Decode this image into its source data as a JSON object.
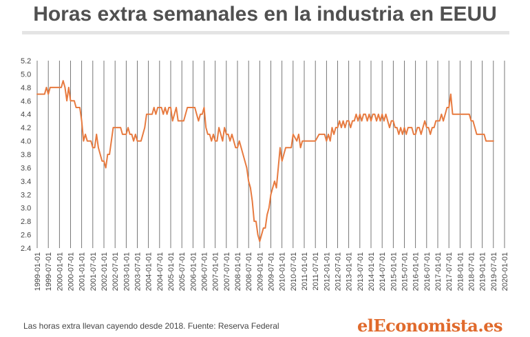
{
  "title": "Horas extra semanales en la industria en EEUU",
  "caption": "Las horas extra llevan cayendo desde 2018. Fuente: Reserva Federal",
  "brand": "elEconomista.es",
  "colors": {
    "line": "#e77a3f",
    "grid": "#555555",
    "title": "#505050",
    "brand": "#e06a2c"
  },
  "chart_data": {
    "type": "line",
    "title": "Horas extra semanales en la industria en EEUU",
    "xlabel": "",
    "ylabel": "",
    "ylim": [
      2.4,
      5.2
    ],
    "y_ticks": [
      "2.4",
      "2.6",
      "2.8",
      "3.0",
      "3.2",
      "3.4",
      "3.6",
      "3.8",
      "4.0",
      "4.2",
      "4.4",
      "4.6",
      "4.8",
      "5.0",
      "5.2"
    ],
    "x_ticks": [
      "1999-01-01",
      "1999-07-01",
      "2000-01-01",
      "2000-07-01",
      "2001-01-01",
      "2001-07-01",
      "2002-01-01",
      "2002-07-01",
      "2003-01-01",
      "2003-07-01",
      "2004-01-01",
      "2004-07-01",
      "2005-01-01",
      "2005-07-01",
      "2006-01-01",
      "2006-07-01",
      "2007-01-01",
      "2007-07-01",
      "2008-01-01",
      "2008-07-01",
      "2009-01-01",
      "2009-07-01",
      "2010-01-01",
      "2010-07-01",
      "2011-01-01",
      "2011-07-01",
      "2012-01-01",
      "2012-07-01",
      "2013-01-01",
      "2013-07-01",
      "2014-01-01",
      "2014-07-01",
      "2015-01-01",
      "2015-07-01",
      "2016-01-01",
      "2016-07-01",
      "2017-01-01",
      "2017-07-01",
      "2018-01-01",
      "2018-07-01",
      "2019-01-01",
      "2019-07-01",
      "2020-01-01"
    ],
    "grid": "vertical",
    "legend": "none",
    "series": [
      {
        "values": [
          [
            "1999-01-01",
            4.7
          ],
          [
            "1999-03-01",
            4.7
          ],
          [
            "1999-05-01",
            4.7
          ],
          [
            "1999-06-01",
            4.8
          ],
          [
            "1999-07-01",
            4.7
          ],
          [
            "1999-08-01",
            4.8
          ],
          [
            "1999-10-01",
            4.8
          ],
          [
            "1999-12-01",
            4.8
          ],
          [
            "2000-02-01",
            4.8
          ],
          [
            "2000-03-01",
            4.9
          ],
          [
            "2000-04-01",
            4.8
          ],
          [
            "2000-05-01",
            4.6
          ],
          [
            "2000-06-01",
            4.8
          ],
          [
            "2000-07-01",
            4.6
          ],
          [
            "2000-09-01",
            4.6
          ],
          [
            "2000-10-01",
            4.5
          ],
          [
            "2000-12-01",
            4.5
          ],
          [
            "2001-01-01",
            4.3
          ],
          [
            "2001-02-01",
            4.0
          ],
          [
            "2001-03-01",
            4.1
          ],
          [
            "2001-04-01",
            4.0
          ],
          [
            "2001-06-01",
            4.0
          ],
          [
            "2001-07-01",
            3.9
          ],
          [
            "2001-08-01",
            3.9
          ],
          [
            "2001-09-01",
            4.1
          ],
          [
            "2001-10-01",
            3.9
          ],
          [
            "2001-11-01",
            3.8
          ],
          [
            "2001-12-01",
            3.7
          ],
          [
            "2002-01-01",
            3.7
          ],
          [
            "2002-02-01",
            3.6
          ],
          [
            "2002-03-01",
            3.8
          ],
          [
            "2002-04-01",
            3.8
          ],
          [
            "2002-05-01",
            4.0
          ],
          [
            "2002-06-01",
            4.2
          ],
          [
            "2002-08-01",
            4.2
          ],
          [
            "2002-10-01",
            4.2
          ],
          [
            "2002-11-01",
            4.1
          ],
          [
            "2003-01-01",
            4.1
          ],
          [
            "2003-02-01",
            4.2
          ],
          [
            "2003-03-01",
            4.1
          ],
          [
            "2003-04-01",
            4.1
          ],
          [
            "2003-05-01",
            4.0
          ],
          [
            "2003-06-01",
            4.1
          ],
          [
            "2003-07-01",
            4.0
          ],
          [
            "2003-09-01",
            4.0
          ],
          [
            "2003-10-01",
            4.1
          ],
          [
            "2003-11-01",
            4.2
          ],
          [
            "2003-12-01",
            4.4
          ],
          [
            "2004-02-01",
            4.4
          ],
          [
            "2004-03-01",
            4.4
          ],
          [
            "2004-04-01",
            4.5
          ],
          [
            "2004-05-01",
            4.4
          ],
          [
            "2004-06-01",
            4.5
          ],
          [
            "2004-08-01",
            4.5
          ],
          [
            "2004-09-01",
            4.4
          ],
          [
            "2004-10-01",
            4.5
          ],
          [
            "2004-11-01",
            4.4
          ],
          [
            "2004-12-01",
            4.5
          ],
          [
            "2005-01-01",
            4.5
          ],
          [
            "2005-02-01",
            4.3
          ],
          [
            "2005-03-01",
            4.4
          ],
          [
            "2005-04-01",
            4.5
          ],
          [
            "2005-05-01",
            4.3
          ],
          [
            "2005-07-01",
            4.3
          ],
          [
            "2005-08-01",
            4.3
          ],
          [
            "2005-09-01",
            4.4
          ],
          [
            "2005-10-01",
            4.5
          ],
          [
            "2005-12-01",
            4.5
          ],
          [
            "2006-02-01",
            4.5
          ],
          [
            "2006-03-01",
            4.4
          ],
          [
            "2006-04-01",
            4.3
          ],
          [
            "2006-05-01",
            4.4
          ],
          [
            "2006-06-01",
            4.4
          ],
          [
            "2006-07-01",
            4.5
          ],
          [
            "2006-08-01",
            4.2
          ],
          [
            "2006-09-01",
            4.1
          ],
          [
            "2006-10-01",
            4.1
          ],
          [
            "2006-11-01",
            4.0
          ],
          [
            "2006-12-01",
            4.1
          ],
          [
            "2007-01-01",
            4.0
          ],
          [
            "2007-02-01",
            4.0
          ],
          [
            "2007-03-01",
            4.2
          ],
          [
            "2007-04-01",
            4.1
          ],
          [
            "2007-05-01",
            4.0
          ],
          [
            "2007-06-01",
            4.2
          ],
          [
            "2007-07-01",
            4.1
          ],
          [
            "2007-08-01",
            4.1
          ],
          [
            "2007-09-01",
            4.0
          ],
          [
            "2007-10-01",
            4.1
          ],
          [
            "2007-11-01",
            4.0
          ],
          [
            "2007-12-01",
            3.9
          ],
          [
            "2008-01-01",
            3.9
          ],
          [
            "2008-02-01",
            4.0
          ],
          [
            "2008-03-01",
            3.9
          ],
          [
            "2008-04-01",
            3.8
          ],
          [
            "2008-05-01",
            3.7
          ],
          [
            "2008-06-01",
            3.6
          ],
          [
            "2008-07-01",
            3.4
          ],
          [
            "2008-08-01",
            3.3
          ],
          [
            "2008-09-01",
            3.1
          ],
          [
            "2008-10-01",
            2.8
          ],
          [
            "2008-11-01",
            2.8
          ],
          [
            "2008-12-01",
            2.6
          ],
          [
            "2009-01-01",
            2.5
          ],
          [
            "2009-02-01",
            2.6
          ],
          [
            "2009-03-01",
            2.7
          ],
          [
            "2009-04-01",
            2.7
          ],
          [
            "2009-05-01",
            2.9
          ],
          [
            "2009-06-01",
            3.0
          ],
          [
            "2009-07-01",
            3.2
          ],
          [
            "2009-08-01",
            3.3
          ],
          [
            "2009-09-01",
            3.4
          ],
          [
            "2009-10-01",
            3.3
          ],
          [
            "2009-11-01",
            3.6
          ],
          [
            "2009-12-01",
            3.9
          ],
          [
            "2010-01-01",
            3.7
          ],
          [
            "2010-02-01",
            3.8
          ],
          [
            "2010-03-01",
            3.9
          ],
          [
            "2010-05-01",
            3.9
          ],
          [
            "2010-06-01",
            3.9
          ],
          [
            "2010-07-01",
            4.1
          ],
          [
            "2010-09-01",
            4.0
          ],
          [
            "2010-10-01",
            4.1
          ],
          [
            "2010-11-01",
            3.9
          ],
          [
            "2010-12-01",
            4.0
          ],
          [
            "2011-01-01",
            4.0
          ],
          [
            "2011-03-01",
            4.0
          ],
          [
            "2011-05-01",
            4.0
          ],
          [
            "2011-07-01",
            4.0
          ],
          [
            "2011-09-01",
            4.1
          ],
          [
            "2011-11-01",
            4.1
          ],
          [
            "2011-12-01",
            4.1
          ],
          [
            "2012-01-01",
            4.0
          ],
          [
            "2012-02-01",
            4.1
          ],
          [
            "2012-03-01",
            4.0
          ],
          [
            "2012-04-01",
            4.2
          ],
          [
            "2012-05-01",
            4.1
          ],
          [
            "2012-06-01",
            4.2
          ],
          [
            "2012-07-01",
            4.2
          ],
          [
            "2012-08-01",
            4.3
          ],
          [
            "2012-09-01",
            4.2
          ],
          [
            "2012-10-01",
            4.3
          ],
          [
            "2012-11-01",
            4.2
          ],
          [
            "2012-12-01",
            4.3
          ],
          [
            "2013-01-01",
            4.3
          ],
          [
            "2013-02-01",
            4.2
          ],
          [
            "2013-03-01",
            4.3
          ],
          [
            "2013-04-01",
            4.3
          ],
          [
            "2013-05-01",
            4.4
          ],
          [
            "2013-06-01",
            4.3
          ],
          [
            "2013-07-01",
            4.4
          ],
          [
            "2013-08-01",
            4.3
          ],
          [
            "2013-09-01",
            4.4
          ],
          [
            "2013-10-01",
            4.4
          ],
          [
            "2013-11-01",
            4.3
          ],
          [
            "2013-12-01",
            4.4
          ],
          [
            "2014-01-01",
            4.3
          ],
          [
            "2014-02-01",
            4.4
          ],
          [
            "2014-03-01",
            4.4
          ],
          [
            "2014-04-01",
            4.3
          ],
          [
            "2014-05-01",
            4.4
          ],
          [
            "2014-06-01",
            4.3
          ],
          [
            "2014-07-01",
            4.4
          ],
          [
            "2014-08-01",
            4.3
          ],
          [
            "2014-09-01",
            4.4
          ],
          [
            "2014-10-01",
            4.3
          ],
          [
            "2014-11-01",
            4.2
          ],
          [
            "2014-12-01",
            4.3
          ],
          [
            "2015-01-01",
            4.3
          ],
          [
            "2015-02-01",
            4.2
          ],
          [
            "2015-03-01",
            4.2
          ],
          [
            "2015-04-01",
            4.1
          ],
          [
            "2015-05-01",
            4.2
          ],
          [
            "2015-06-01",
            4.1
          ],
          [
            "2015-07-01",
            4.2
          ],
          [
            "2015-08-01",
            4.1
          ],
          [
            "2015-09-01",
            4.2
          ],
          [
            "2015-10-01",
            4.2
          ],
          [
            "2015-11-01",
            4.2
          ],
          [
            "2015-12-01",
            4.1
          ],
          [
            "2016-01-01",
            4.1
          ],
          [
            "2016-02-01",
            4.2
          ],
          [
            "2016-03-01",
            4.2
          ],
          [
            "2016-04-01",
            4.1
          ],
          [
            "2016-05-01",
            4.2
          ],
          [
            "2016-06-01",
            4.3
          ],
          [
            "2016-07-01",
            4.2
          ],
          [
            "2016-08-01",
            4.2
          ],
          [
            "2016-09-01",
            4.1
          ],
          [
            "2016-10-01",
            4.2
          ],
          [
            "2016-11-01",
            4.2
          ],
          [
            "2016-12-01",
            4.3
          ],
          [
            "2017-01-01",
            4.3
          ],
          [
            "2017-02-01",
            4.3
          ],
          [
            "2017-03-01",
            4.4
          ],
          [
            "2017-04-01",
            4.3
          ],
          [
            "2017-05-01",
            4.4
          ],
          [
            "2017-06-01",
            4.5
          ],
          [
            "2017-07-01",
            4.5
          ],
          [
            "2017-08-01",
            4.7
          ],
          [
            "2017-09-01",
            4.4
          ],
          [
            "2017-10-01",
            4.4
          ],
          [
            "2017-11-01",
            4.4
          ],
          [
            "2017-12-01",
            4.4
          ],
          [
            "2018-01-01",
            4.4
          ],
          [
            "2018-02-01",
            4.4
          ],
          [
            "2018-03-01",
            4.4
          ],
          [
            "2018-04-01",
            4.4
          ],
          [
            "2018-05-01",
            4.4
          ],
          [
            "2018-06-01",
            4.4
          ],
          [
            "2018-07-01",
            4.3
          ],
          [
            "2018-08-01",
            4.3
          ],
          [
            "2018-09-01",
            4.2
          ],
          [
            "2018-10-01",
            4.1
          ],
          [
            "2018-11-01",
            4.1
          ],
          [
            "2018-12-01",
            4.1
          ],
          [
            "2019-01-01",
            4.1
          ],
          [
            "2019-02-01",
            4.1
          ],
          [
            "2019-03-01",
            4.0
          ],
          [
            "2019-04-01",
            4.0
          ],
          [
            "2019-05-01",
            4.0
          ],
          [
            "2019-06-01",
            4.0
          ],
          [
            "2019-07-01",
            4.0
          ]
        ]
      }
    ]
  }
}
